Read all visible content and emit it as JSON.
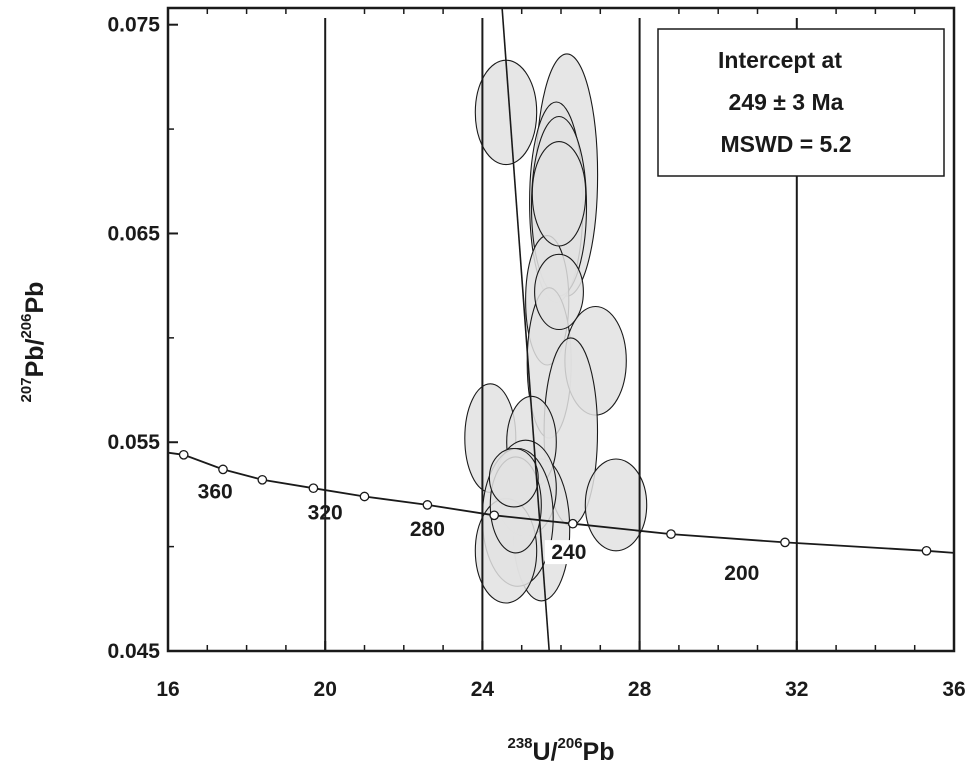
{
  "chart_data": {
    "type": "scatter",
    "subtype": "U-Pb Tera-Wasserburg concordia with error ellipses",
    "xlabel": {
      "sup1": "238",
      "main1": "U/",
      "sup2": "206",
      "main2": "Pb"
    },
    "ylabel": {
      "sup1": "207",
      "main1": "Pb/",
      "sup2": "206",
      "main2": "Pb"
    },
    "xlim": [
      16,
      36
    ],
    "ylim": [
      0.045,
      0.076
    ],
    "x_ticks": [
      "16",
      "20",
      "24",
      "28",
      "32",
      "36"
    ],
    "x_tick_values": [
      16,
      20,
      24,
      28,
      32,
      36
    ],
    "y_ticks": [
      "0.045",
      "0.055",
      "0.065",
      "0.075"
    ],
    "y_tick_values": [
      0.045,
      0.055,
      0.065,
      0.075
    ],
    "y_minor_tick_values": [
      0.05,
      0.06,
      0.07
    ],
    "annotation": [
      "Intercept at",
      "249 ± 3 Ma",
      "MSWD = 5.2"
    ],
    "concordia": [
      {
        "x": 16.4,
        "y": 0.0544
      },
      {
        "x": 17.4,
        "y": 0.0537
      },
      {
        "x": 18.4,
        "y": 0.0532
      },
      {
        "x": 19.7,
        "y": 0.0528
      },
      {
        "x": 21.0,
        "y": 0.0524
      },
      {
        "x": 22.6,
        "y": 0.052
      },
      {
        "x": 24.3,
        "y": 0.0515
      },
      {
        "x": 26.3,
        "y": 0.0511
      },
      {
        "x": 28.8,
        "y": 0.0506
      },
      {
        "x": 31.7,
        "y": 0.0502
      },
      {
        "x": 35.3,
        "y": 0.0498
      }
    ],
    "concordia_start": {
      "x": 16.0,
      "y": 0.0545
    },
    "concordia_end": {
      "x": 36.0,
      "y": 0.0497
    },
    "age_labels": [
      {
        "text": "360",
        "x": 17.2,
        "y": 0.0523
      },
      {
        "text": "320",
        "x": 20.0,
        "y": 0.0513
      },
      {
        "text": "280",
        "x": 22.6,
        "y": 0.0505
      },
      {
        "text": "240",
        "x": 26.2,
        "y": 0.0494
      },
      {
        "text": "200",
        "x": 30.6,
        "y": 0.0484
      }
    ],
    "regression_line": {
      "x1": 24.5,
      "y1": 0.0758,
      "x2": 25.7,
      "y2": 0.045
    },
    "ellipses": [
      {
        "x": 26.15,
        "y": 0.0678,
        "rx": 0.78,
        "ry": 0.0058
      },
      {
        "x": 25.88,
        "y": 0.0665,
        "rx": 0.68,
        "ry": 0.0048
      },
      {
        "x": 25.95,
        "y": 0.0663,
        "rx": 0.7,
        "ry": 0.0043
      },
      {
        "x": 25.65,
        "y": 0.0618,
        "rx": 0.55,
        "ry": 0.0031
      },
      {
        "x": 25.7,
        "y": 0.0588,
        "rx": 0.56,
        "ry": 0.0036
      },
      {
        "x": 26.88,
        "y": 0.0589,
        "rx": 0.78,
        "ry": 0.0026
      },
      {
        "x": 26.25,
        "y": 0.0555,
        "rx": 0.68,
        "ry": 0.0045
      },
      {
        "x": 27.4,
        "y": 0.052,
        "rx": 0.78,
        "ry": 0.0022
      },
      {
        "x": 25.5,
        "y": 0.0508,
        "rx": 0.72,
        "ry": 0.0034
      },
      {
        "x": 24.6,
        "y": 0.0708,
        "rx": 0.78,
        "ry": 0.0025
      },
      {
        "x": 25.95,
        "y": 0.0669,
        "rx": 0.68,
        "ry": 0.0025
      },
      {
        "x": 25.95,
        "y": 0.0622,
        "rx": 0.62,
        "ry": 0.0018
      },
      {
        "x": 24.2,
        "y": 0.0552,
        "rx": 0.65,
        "ry": 0.0026
      },
      {
        "x": 25.25,
        "y": 0.055,
        "rx": 0.63,
        "ry": 0.0022
      },
      {
        "x": 25.1,
        "y": 0.0528,
        "rx": 0.78,
        "ry": 0.0023
      },
      {
        "x": 24.9,
        "y": 0.0514,
        "rx": 0.9,
        "ry": 0.0033
      },
      {
        "x": 24.6,
        "y": 0.0498,
        "rx": 0.78,
        "ry": 0.0025
      },
      {
        "x": 24.85,
        "y": 0.052,
        "rx": 0.65,
        "ry": 0.0023
      },
      {
        "x": 24.8,
        "y": 0.0533,
        "rx": 0.62,
        "ry": 0.0014
      }
    ],
    "colors": {
      "ellipse_fill": "#e2e2e2",
      "stroke": "#1a1a1a",
      "background": "#ffffff"
    }
  }
}
